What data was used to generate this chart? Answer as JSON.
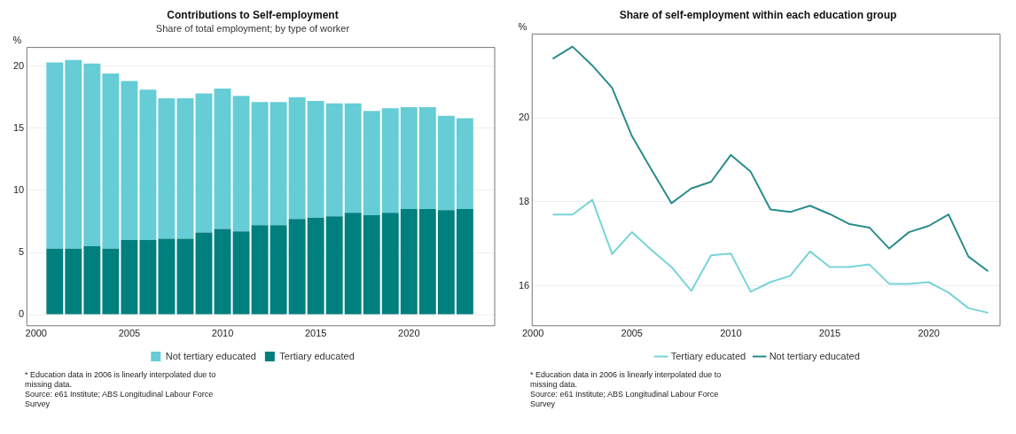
{
  "chart_data": [
    {
      "type": "bar",
      "title": "Contributions to Self-employment",
      "subtitle": "Share of total employment; by type of worker",
      "ylabel": "%",
      "x": [
        2001,
        2002,
        2003,
        2004,
        2005,
        2006,
        2007,
        2008,
        2009,
        2010,
        2011,
        2012,
        2013,
        2014,
        2015,
        2016,
        2017,
        2018,
        2019,
        2020,
        2021,
        2022,
        2023
      ],
      "series": [
        {
          "name": "Tertiary educated",
          "color": "#007f7f",
          "values": [
            5.3,
            5.3,
            5.5,
            5.3,
            6.0,
            6.0,
            6.1,
            6.1,
            6.6,
            6.9,
            6.7,
            7.2,
            7.2,
            7.7,
            7.8,
            7.9,
            8.2,
            8.0,
            8.2,
            8.5,
            8.5,
            8.4,
            8.5
          ]
        },
        {
          "name": "Not tertiary educated",
          "color": "#66ccd6",
          "values": [
            15.0,
            15.2,
            14.7,
            14.1,
            12.8,
            12.1,
            11.3,
            11.3,
            11.2,
            11.3,
            10.9,
            9.9,
            9.9,
            9.8,
            9.4,
            9.1,
            8.8,
            8.4,
            8.4,
            8.2,
            8.2,
            7.6,
            7.3
          ]
        }
      ],
      "stacked": true,
      "xlim": [
        1999.5,
        2024.6
      ],
      "xticks": [
        2000,
        2005,
        2010,
        2015,
        2020
      ],
      "ylim": [
        -0.9,
        21.5
      ],
      "yticks": [
        0,
        5,
        10,
        15,
        20
      ],
      "grid": "y",
      "legend": "bottom",
      "annotations": [
        "* Education data in 2006 is linearly interpolated due to missing data.",
        "Source: e61 Institute; ABS Longitudinal Labour Force Survey"
      ]
    },
    {
      "type": "line",
      "title": "Share of self-employment within each education group",
      "ylabel": "%",
      "x": [
        2001,
        2002,
        2003,
        2004,
        2005,
        2006,
        2007,
        2008,
        2009,
        2010,
        2011,
        2012,
        2013,
        2014,
        2015,
        2016,
        2017,
        2018,
        2019,
        2020,
        2021,
        2022,
        2023
      ],
      "series": [
        {
          "name": "Tertiary educated",
          "color": "#77d4d8",
          "values": [
            17.7,
            17.7,
            18.05,
            16.76,
            17.28,
            16.85,
            16.45,
            15.88,
            16.73,
            16.77,
            15.86,
            16.09,
            16.24,
            16.82,
            16.45,
            16.45,
            16.51,
            16.05,
            16.05,
            16.09,
            15.84,
            15.47,
            15.36
          ]
        },
        {
          "name": "Not tertiary educated",
          "color": "#2a8c8c",
          "values": [
            21.41,
            21.7,
            21.25,
            20.72,
            19.57,
            18.76,
            17.97,
            18.32,
            18.48,
            19.12,
            18.72,
            17.82,
            17.76,
            17.91,
            17.71,
            17.47,
            17.39,
            16.89,
            17.28,
            17.43,
            17.7,
            16.7,
            16.35
          ]
        }
      ],
      "xlim": [
        1999.96,
        2023.6
      ],
      "xticks": [
        2000,
        2005,
        2010,
        2015,
        2020
      ],
      "ylim": [
        15.05,
        22.0
      ],
      "yticks": [
        16,
        18,
        20
      ],
      "grid": "y",
      "legend": "bottom",
      "annotations": [
        "* Education data in 2006 is linearly interpolated due to missing data.",
        "Source: e61 Institute; ABS Longitudinal Labour Force Survey"
      ]
    }
  ]
}
